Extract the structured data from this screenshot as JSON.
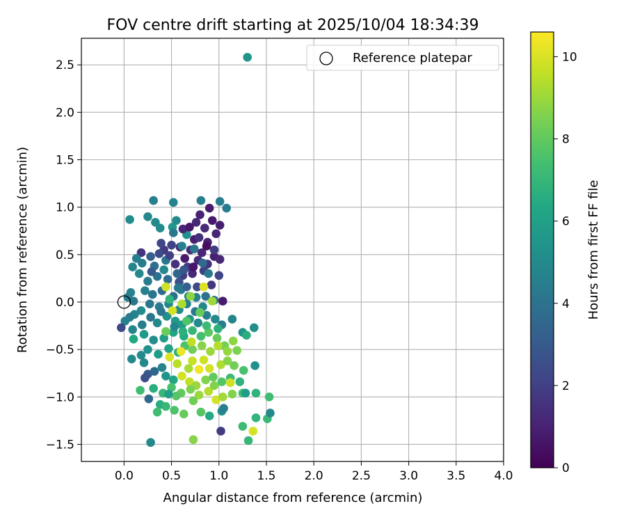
{
  "chart_data": {
    "type": "scatter",
    "title": "FOV centre drift starting at 2025/10/04 18:34:39",
    "xlabel": "Angular distance from reference (arcmin)",
    "ylabel": "Rotation from reference (arcmin)",
    "xlim": [
      -0.45,
      4.0
    ],
    "ylim": [
      -1.68,
      2.78
    ],
    "xticks": [
      0.0,
      0.5,
      1.0,
      1.5,
      2.0,
      2.5,
      3.0,
      3.5,
      4.0
    ],
    "xtick_labels": [
      "0.0",
      "0.5",
      "1.0",
      "1.5",
      "2.0",
      "2.5",
      "3.0",
      "3.5",
      "4.0"
    ],
    "yticks": [
      -1.5,
      -1.0,
      -0.5,
      0.0,
      0.5,
      1.0,
      1.5,
      2.0,
      2.5
    ],
    "ytick_labels": [
      "−1.5",
      "−1.0",
      "−0.5",
      "0.0",
      "0.5",
      "1.0",
      "1.5",
      "2.0",
      "2.5"
    ],
    "grid": true,
    "legend": {
      "label": "Reference platepar",
      "location": "top-right"
    },
    "reference_point": {
      "x": 0.0,
      "y": 0.0
    },
    "colorbar": {
      "label": "Hours from first FF file",
      "colormap": "viridis",
      "range": [
        0,
        10.6
      ],
      "ticks": [
        0,
        2,
        4,
        6,
        8,
        10
      ],
      "tick_labels": [
        "0",
        "2",
        "4",
        "6",
        "8",
        "10"
      ]
    },
    "series": [
      {
        "name": "FOV centre drift",
        "points": [
          [
            1.3,
            2.58,
            5.5
          ],
          [
            0.81,
            1.07,
            4.5
          ],
          [
            1.01,
            1.06,
            4.5
          ],
          [
            1.08,
            0.99,
            4.4
          ],
          [
            0.31,
            1.07,
            4.6
          ],
          [
            0.52,
            1.05,
            4.7
          ],
          [
            0.06,
            0.87,
            5.1
          ],
          [
            0.25,
            0.9,
            4.9
          ],
          [
            0.55,
            0.86,
            5.0
          ],
          [
            0.66,
            0.71,
            5.4
          ],
          [
            0.38,
            0.78,
            5.1
          ],
          [
            0.33,
            0.84,
            5.0
          ],
          [
            0.51,
            0.79,
            5.6
          ],
          [
            0.93,
            0.86,
            0.8
          ],
          [
            0.8,
            0.92,
            1.0
          ],
          [
            0.9,
            0.99,
            0.8
          ],
          [
            0.76,
            0.84,
            1.2
          ],
          [
            1.01,
            0.81,
            0.9
          ],
          [
            0.62,
            0.77,
            1.1
          ],
          [
            0.85,
            0.78,
            1.3
          ],
          [
            0.97,
            0.72,
            1.1
          ],
          [
            0.74,
            0.66,
            0.9
          ],
          [
            0.88,
            0.63,
            1.0
          ],
          [
            0.59,
            0.58,
            1.2
          ],
          [
            0.7,
            0.55,
            1.4
          ],
          [
            0.82,
            0.52,
            1.1
          ],
          [
            0.95,
            0.48,
            0.9
          ],
          [
            1.01,
            0.45,
            1.2
          ],
          [
            0.64,
            0.46,
            0.8
          ],
          [
            0.78,
            0.44,
            1.3
          ],
          [
            0.54,
            0.4,
            1.5
          ],
          [
            0.88,
            0.4,
            1.6
          ],
          [
            0.67,
            0.37,
            1.8
          ],
          [
            0.72,
            0.3,
            1.2
          ],
          [
            0.62,
            0.28,
            1.9
          ],
          [
            1.0,
            0.28,
            2.2
          ],
          [
            0.84,
            0.33,
            2.0
          ],
          [
            0.92,
            0.18,
            1.7
          ],
          [
            0.77,
            0.16,
            2.4
          ],
          [
            1.04,
            0.01,
            0.8
          ],
          [
            0.18,
            0.52,
            1.6
          ],
          [
            0.42,
            0.55,
            1.8
          ],
          [
            0.5,
            0.6,
            2.1
          ],
          [
            0.39,
            0.62,
            2.2
          ],
          [
            0.28,
            0.48,
            3.2
          ],
          [
            0.13,
            0.46,
            4.6
          ],
          [
            0.09,
            0.37,
            4.8
          ],
          [
            0.19,
            0.41,
            4.5
          ],
          [
            0.32,
            0.38,
            3.9
          ],
          [
            0.44,
            0.44,
            4.2
          ],
          [
            0.61,
            0.59,
            4.7
          ],
          [
            0.74,
            0.56,
            4.1
          ],
          [
            0.83,
            0.41,
            3.6
          ],
          [
            0.89,
            0.3,
            4.3
          ],
          [
            0.56,
            0.3,
            3.5
          ],
          [
            0.46,
            0.24,
            3.8
          ],
          [
            0.35,
            0.27,
            4.0
          ],
          [
            0.25,
            0.22,
            4.4
          ],
          [
            0.16,
            0.3,
            4.9
          ],
          [
            0.07,
            0.1,
            4.7
          ],
          [
            0.04,
            0.05,
            4.5
          ],
          [
            0.1,
            0.01,
            4.3
          ],
          [
            0.22,
            0.12,
            4.6
          ],
          [
            0.3,
            0.08,
            4.1
          ],
          [
            0.4,
            0.12,
            3.7
          ],
          [
            0.52,
            0.06,
            3.9
          ],
          [
            0.6,
            0.13,
            4.2
          ],
          [
            0.68,
            0.06,
            4.4
          ],
          [
            0.76,
            0.05,
            4.8
          ],
          [
            0.86,
            0.06,
            4.0
          ],
          [
            0.95,
            0.02,
            3.8
          ],
          [
            0.27,
            -0.02,
            4.2
          ],
          [
            0.37,
            -0.05,
            4.5
          ],
          [
            0.47,
            -0.02,
            4.8
          ],
          [
            0.58,
            -0.08,
            5.0
          ],
          [
            0.66,
            -0.02,
            4.6
          ],
          [
            0.75,
            -0.1,
            4.3
          ],
          [
            0.83,
            -0.05,
            4.9
          ],
          [
            0.18,
            -0.09,
            5.1
          ],
          [
            0.11,
            -0.13,
            4.7
          ],
          [
            0.06,
            -0.16,
            4.4
          ],
          [
            0.01,
            -0.2,
            4.6
          ],
          [
            -0.03,
            -0.27,
            2.4
          ],
          [
            0.09,
            -0.29,
            4.8
          ],
          [
            0.19,
            -0.24,
            4.5
          ],
          [
            0.28,
            -0.16,
            4.2
          ],
          [
            0.35,
            -0.22,
            4.9
          ],
          [
            0.45,
            -0.15,
            5.2
          ],
          [
            0.54,
            -0.2,
            5.6
          ],
          [
            0.61,
            -0.24,
            5.8
          ],
          [
            0.69,
            -0.18,
            5.3
          ],
          [
            0.78,
            -0.22,
            5.0
          ],
          [
            0.87,
            -0.14,
            4.6
          ],
          [
            0.96,
            -0.18,
            4.9
          ],
          [
            1.03,
            -0.24,
            4.4
          ],
          [
            1.14,
            -0.18,
            4.8
          ],
          [
            1.25,
            -0.32,
            5.4
          ],
          [
            1.29,
            -0.35,
            6.6
          ],
          [
            1.37,
            -0.27,
            5.2
          ],
          [
            0.1,
            -0.39,
            6.3
          ],
          [
            0.21,
            -0.34,
            5.7
          ],
          [
            0.31,
            -0.4,
            5.2
          ],
          [
            0.42,
            -0.38,
            5.9
          ],
          [
            0.52,
            -0.32,
            6.2
          ],
          [
            0.63,
            -0.36,
            6.5
          ],
          [
            0.72,
            -0.3,
            7.0
          ],
          [
            0.81,
            -0.36,
            7.4
          ],
          [
            0.89,
            -0.32,
            7.9
          ],
          [
            0.98,
            -0.38,
            8.1
          ],
          [
            1.06,
            -0.46,
            8.4
          ],
          [
            1.15,
            -0.41,
            8.8
          ],
          [
            0.08,
            -0.6,
            4.9
          ],
          [
            0.18,
            -0.56,
            5.0
          ],
          [
            0.21,
            -0.64,
            4.9
          ],
          [
            0.25,
            -0.5,
            5.3
          ],
          [
            0.36,
            -0.55,
            5.8
          ],
          [
            0.47,
            -0.49,
            6.1
          ],
          [
            0.57,
            -0.53,
            6.8
          ],
          [
            0.64,
            -0.46,
            7.6
          ],
          [
            0.72,
            -0.5,
            8.3
          ],
          [
            0.82,
            -0.46,
            8.7
          ],
          [
            0.91,
            -0.52,
            9.0
          ],
          [
            0.99,
            -0.46,
            9.4
          ],
          [
            1.09,
            -0.52,
            8.9
          ],
          [
            1.19,
            -0.51,
            8.5
          ],
          [
            0.6,
            -0.52,
            10.3
          ],
          [
            0.48,
            -0.58,
            10.0
          ],
          [
            0.72,
            -0.62,
            9.7
          ],
          [
            0.84,
            -0.61,
            9.8
          ],
          [
            0.56,
            -0.65,
            9.5
          ],
          [
            0.68,
            -0.7,
            9.2
          ],
          [
            0.9,
            -0.7,
            9.9
          ],
          [
            1.02,
            -0.66,
            9.3
          ],
          [
            1.09,
            -0.62,
            8.7
          ],
          [
            1.16,
            -0.67,
            8.3
          ],
          [
            1.26,
            -0.72,
            7.5
          ],
          [
            0.25,
            -0.76,
            3.0
          ],
          [
            0.22,
            -0.8,
            2.6
          ],
          [
            0.32,
            -0.73,
            3.5
          ],
          [
            0.4,
            -0.69,
            4.8
          ],
          [
            0.44,
            -0.78,
            5.5
          ],
          [
            0.52,
            -0.82,
            6.2
          ],
          [
            0.61,
            -0.78,
            9.9
          ],
          [
            0.69,
            -0.84,
            9.6
          ],
          [
            0.76,
            -0.88,
            9.0
          ],
          [
            0.86,
            -0.82,
            8.6
          ],
          [
            0.94,
            -0.79,
            8.0
          ],
          [
            1.03,
            -0.84,
            7.7
          ],
          [
            1.12,
            -0.8,
            7.2
          ],
          [
            1.22,
            -0.84,
            6.8
          ],
          [
            1.38,
            -0.67,
            5.3
          ],
          [
            0.17,
            -0.93,
            7.3
          ],
          [
            0.31,
            -0.91,
            6.6
          ],
          [
            0.41,
            -0.96,
            7.0
          ],
          [
            0.5,
            -0.9,
            7.5
          ],
          [
            0.6,
            -0.96,
            8.0
          ],
          [
            0.7,
            -0.92,
            8.5
          ],
          [
            0.79,
            -0.98,
            9.0
          ],
          [
            0.89,
            -0.94,
            9.4
          ],
          [
            0.97,
            -1.03,
            9.9
          ],
          [
            1.04,
            -1.0,
            9.1
          ],
          [
            1.14,
            -0.97,
            8.6
          ],
          [
            1.25,
            -0.96,
            7.4
          ],
          [
            1.28,
            -0.96,
            5.8
          ],
          [
            1.39,
            -0.96,
            6.8
          ],
          [
            1.53,
            -1.0,
            7.3
          ],
          [
            0.26,
            -1.02,
            3.6
          ],
          [
            0.38,
            -1.08,
            6.6
          ],
          [
            0.44,
            -1.1,
            7.0
          ],
          [
            0.53,
            -1.14,
            7.6
          ],
          [
            0.63,
            -1.18,
            8.1
          ],
          [
            0.81,
            -1.16,
            7.8
          ],
          [
            0.9,
            -1.2,
            6.4
          ],
          [
            1.03,
            -1.15,
            5.1
          ],
          [
            1.05,
            -1.12,
            4.6
          ],
          [
            0.35,
            -1.16,
            7.3
          ],
          [
            1.39,
            -1.22,
            6.9
          ],
          [
            1.51,
            -1.23,
            7.1
          ],
          [
            1.54,
            -1.17,
            4.9
          ],
          [
            1.25,
            -1.31,
            7.2
          ],
          [
            1.31,
            -1.46,
            7.0
          ],
          [
            1.36,
            -1.36,
            9.9
          ],
          [
            0.73,
            -1.45,
            8.7
          ],
          [
            0.28,
            -1.48,
            4.9
          ],
          [
            1.02,
            -1.36,
            1.9
          ],
          [
            0.66,
            -0.2,
            7.7
          ],
          [
            0.7,
            0.06,
            8.8
          ],
          [
            0.61,
            -0.02,
            9.3
          ],
          [
            0.48,
            0.03,
            6.9
          ],
          [
            0.39,
            -0.1,
            4.1
          ],
          [
            0.29,
            0.32,
            3.0
          ],
          [
            0.44,
            0.16,
            9.8
          ],
          [
            0.84,
            0.16,
            10.1
          ],
          [
            0.93,
            0.01,
            9.0
          ],
          [
            0.51,
            -0.09,
            9.9
          ],
          [
            0.8,
            -0.11,
            8.1
          ],
          [
            0.87,
            -0.25,
            7.2
          ],
          [
            0.99,
            -0.28,
            6.7
          ],
          [
            0.58,
            0.21,
            2.6
          ],
          [
            0.66,
            0.16,
            3.3
          ],
          [
            0.48,
            0.49,
            2.0
          ],
          [
            0.37,
            0.51,
            2.4
          ],
          [
            0.52,
            0.73,
            4.3
          ],
          [
            0.63,
            0.34,
            2.8
          ],
          [
            0.73,
            0.37,
            0.6
          ],
          [
            0.87,
            0.59,
            0.4
          ],
          [
            0.79,
            0.68,
            1.5
          ],
          [
            0.69,
            0.79,
            0.7
          ],
          [
            0.95,
            0.55,
            1.9
          ],
          [
            0.57,
            0.15,
            4.3
          ],
          [
            0.42,
            0.34,
            4.9
          ],
          [
            0.53,
            -0.26,
            4.8
          ],
          [
            0.62,
            -0.31,
            6.7
          ],
          [
            0.44,
            -0.31,
            8.2
          ],
          [
            0.71,
            -0.42,
            9.6
          ],
          [
            0.79,
            -0.71,
            10.4
          ],
          [
            0.55,
            -0.99,
            7.8
          ],
          [
            0.47,
            -0.97,
            5.9
          ],
          [
            0.73,
            -1.04,
            8.3
          ],
          [
            0.95,
            -0.88,
            8.6
          ],
          [
            1.12,
            -0.85,
            9.8
          ]
        ]
      }
    ]
  }
}
